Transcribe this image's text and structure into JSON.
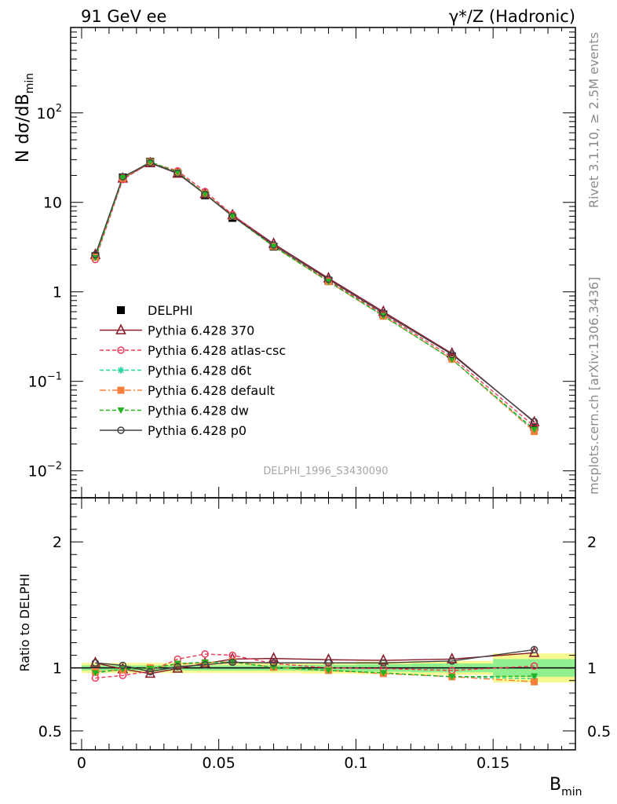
{
  "header": {
    "left_title": "91 GeV ee",
    "right_title_prefix": "γ*/Z (Hadronic)"
  },
  "side_labels": {
    "rivet": "Rivet 3.1.10, ≥ 2.5M events",
    "mcplots": "mcplots.cern.ch [arXiv:1306.3436]"
  },
  "watermark": "DELPHI_1996_S3430090",
  "colors": {
    "DELPHI": "#000000",
    "Pythia 6.428 370": "#8b1a2b",
    "Pythia 6.428 atlas-csc": "#ee3a5a",
    "Pythia 6.428 d6t": "#22d4a0",
    "Pythia 6.428 default": "#f5803c",
    "Pythia 6.428 dw": "#22b422",
    "Pythia 6.428 p0": "#444444",
    "band_inner": "#90f090",
    "band_outer": "#f8f890"
  },
  "chart_data": [
    {
      "type": "line",
      "panel": "main",
      "ylabel": "N dσ/dB_min",
      "yscale": "log",
      "ylim": [
        0.005,
        900
      ],
      "xlim": [
        -0.004,
        0.18
      ],
      "y_ticks": [
        {
          "value": 0.01,
          "base": "10",
          "exp": "−2"
        },
        {
          "value": 0.1,
          "base": "10",
          "exp": "−1"
        },
        {
          "value": 1,
          "base": "1",
          "exp": ""
        },
        {
          "value": 10,
          "base": "10",
          "exp": ""
        },
        {
          "value": 100,
          "base": "10",
          "exp": "2"
        }
      ],
      "x": [
        0.005,
        0.015,
        0.025,
        0.035,
        0.045,
        0.055,
        0.07,
        0.09,
        0.11,
        0.135,
        0.165
      ],
      "series": [
        {
          "name": "DELPHI",
          "marker": "square-filled",
          "line": "none",
          "values": [
            2.5,
            19.0,
            28.5,
            21.0,
            12.0,
            6.7,
            3.2,
            1.33,
            0.56,
            0.19,
            0.031
          ]
        },
        {
          "name": "Pythia 6.428 370",
          "marker": "triangle-open",
          "line": "solid",
          "values": [
            2.6,
            18.5,
            27.5,
            21.0,
            12.4,
            7.2,
            3.45,
            1.42,
            0.6,
            0.205,
            0.035
          ]
        },
        {
          "name": "Pythia 6.428 atlas-csc",
          "marker": "circle-open",
          "line": "dashed",
          "values": [
            2.3,
            18.0,
            27.8,
            22.5,
            13.2,
            7.3,
            3.3,
            1.34,
            0.56,
            0.187,
            0.0315
          ]
        },
        {
          "name": "Pythia 6.428 d6t",
          "marker": "star",
          "line": "dashed",
          "values": [
            2.45,
            18.6,
            28.4,
            21.6,
            12.5,
            7.0,
            3.22,
            1.3,
            0.54,
            0.176,
            0.028
          ]
        },
        {
          "name": "Pythia 6.428 default",
          "marker": "square-filled",
          "line": "dashdot",
          "values": [
            2.45,
            18.6,
            28.4,
            21.6,
            12.5,
            7.0,
            3.22,
            1.3,
            0.535,
            0.177,
            0.0275
          ]
        },
        {
          "name": "Pythia 6.428 dw",
          "marker": "triangle-down-filled",
          "line": "dashed",
          "values": [
            2.4,
            18.8,
            28.4,
            21.7,
            12.5,
            7.0,
            3.21,
            1.3,
            0.538,
            0.176,
            0.029
          ]
        },
        {
          "name": "Pythia 6.428 p0",
          "marker": "circle-open",
          "line": "solid",
          "values": [
            2.6,
            19.3,
            27.7,
            21.2,
            12.3,
            7.0,
            3.33,
            1.38,
            0.58,
            0.2,
            0.0355
          ]
        }
      ],
      "legend": "left"
    },
    {
      "type": "line",
      "panel": "ratio",
      "ylabel": "Ratio to DELPHI",
      "xlabel": "B_min",
      "ylim": [
        0.35,
        2.35
      ],
      "xlim": [
        -0.004,
        0.18
      ],
      "y_ticks": [
        0.5,
        1,
        2
      ],
      "y_tick_labels": [
        "0.5",
        "1",
        "2"
      ],
      "x_ticks": [
        0,
        0.05,
        0.1,
        0.15
      ],
      "x_tick_labels": [
        "0",
        "0.05",
        "0.1",
        "0.15"
      ],
      "x": [
        0.005,
        0.015,
        0.025,
        0.035,
        0.045,
        0.055,
        0.07,
        0.09,
        0.11,
        0.135,
        0.165
      ],
      "x_edges": [
        0.0,
        0.01,
        0.02,
        0.03,
        0.04,
        0.05,
        0.06,
        0.08,
        0.1,
        0.12,
        0.15,
        0.18
      ],
      "bands": [
        {
          "inner": [
            0.02,
            0.02,
            0.02,
            0.02,
            0.02,
            0.02,
            0.02,
            0.025,
            0.03,
            0.035,
            0.07
          ],
          "outer": [
            0.04,
            0.04,
            0.04,
            0.04,
            0.04,
            0.04,
            0.04,
            0.045,
            0.05,
            0.055,
            0.115
          ]
        }
      ],
      "series": [
        {
          "name": "Pythia 6.428 370",
          "values": [
            1.04,
            0.99,
            0.955,
            0.995,
            1.035,
            1.07,
            1.075,
            1.065,
            1.06,
            1.07,
            1.12
          ]
        },
        {
          "name": "Pythia 6.428 atlas-csc",
          "values": [
            0.92,
            0.94,
            0.975,
            1.07,
            1.11,
            1.1,
            1.035,
            1.0,
            0.995,
            0.98,
            1.015
          ]
        },
        {
          "name": "Pythia 6.428 d6t",
          "values": [
            0.97,
            0.985,
            1.0,
            1.03,
            1.04,
            1.05,
            1.005,
            0.98,
            0.96,
            0.93,
            0.915
          ]
        },
        {
          "name": "Pythia 6.428 default",
          "values": [
            0.97,
            0.985,
            1.0,
            1.03,
            1.04,
            1.05,
            1.005,
            0.98,
            0.955,
            0.93,
            0.89
          ]
        },
        {
          "name": "Pythia 6.428 dw",
          "values": [
            0.96,
            0.99,
            0.995,
            1.035,
            1.045,
            1.045,
            1.005,
            0.98,
            0.96,
            0.93,
            0.935
          ]
        },
        {
          "name": "Pythia 6.428 p0",
          "values": [
            1.04,
            1.02,
            0.97,
            1.01,
            1.025,
            1.045,
            1.04,
            1.04,
            1.04,
            1.055,
            1.145
          ]
        }
      ]
    }
  ]
}
